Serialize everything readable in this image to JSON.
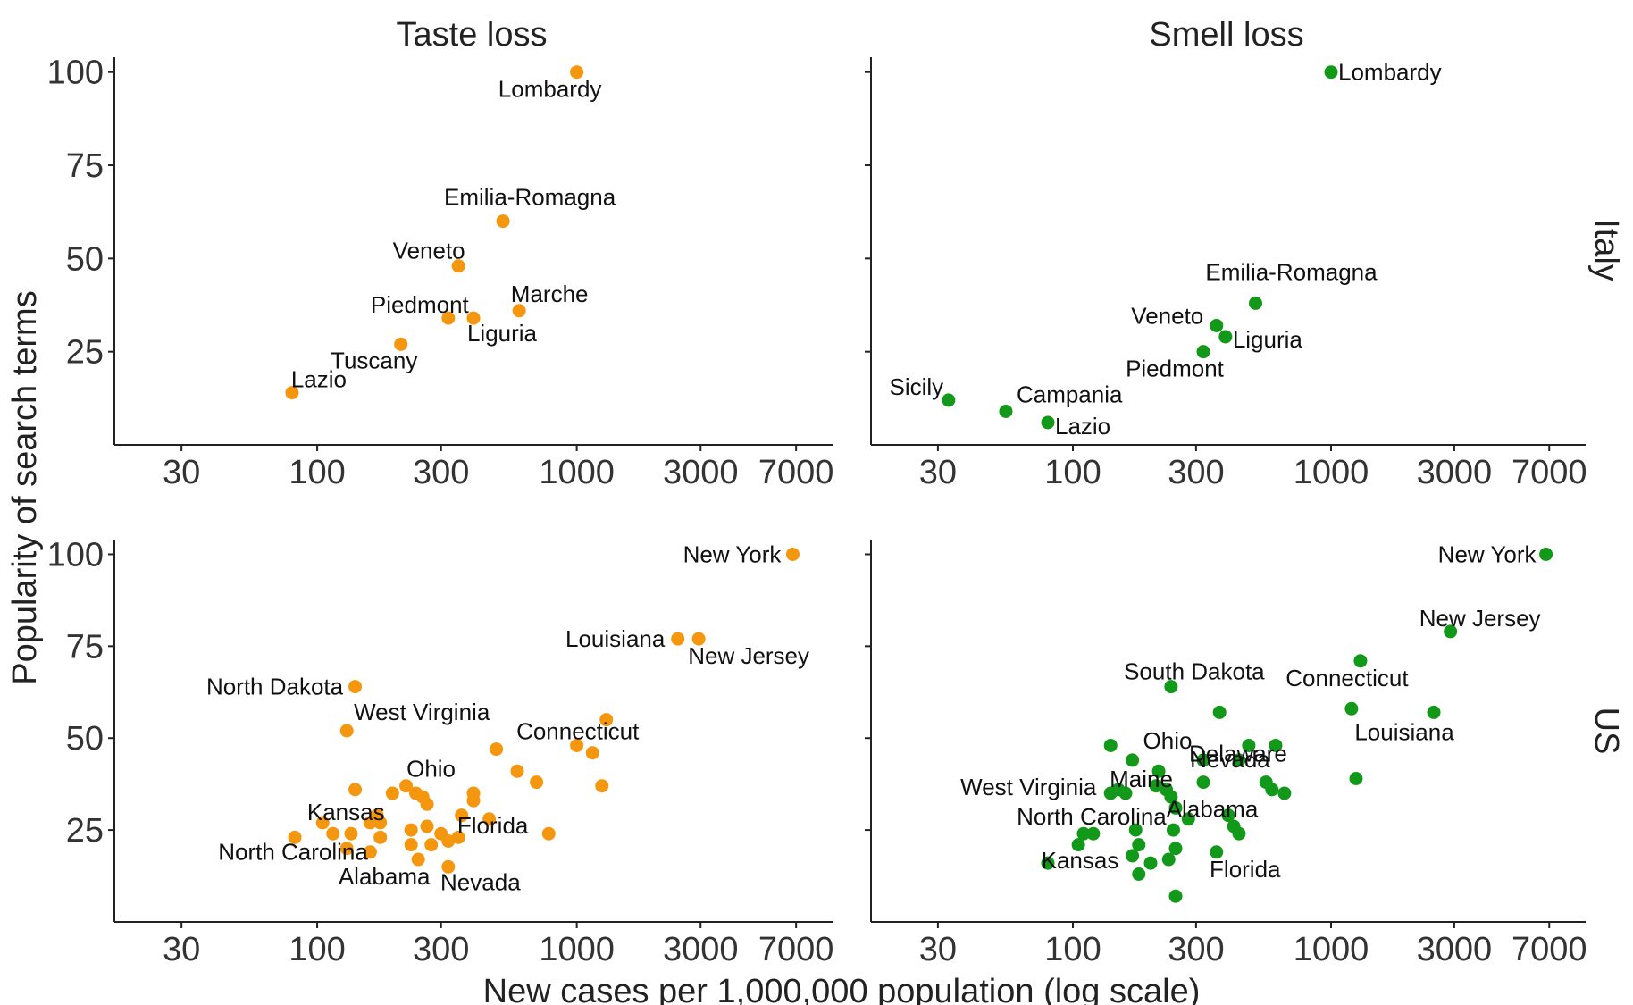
{
  "chart_data": {
    "type": "scatter",
    "facet_cols": [
      "Taste loss",
      "Smell loss"
    ],
    "facet_rows": [
      "Italy",
      "US"
    ],
    "xlabel": "New cases per 1,000,000 population (log scale)",
    "ylabel": "Popularity of search terms",
    "x_scale": "log",
    "x_ticks": [
      30,
      100,
      300,
      1000,
      3000,
      7000
    ],
    "x_tick_labels": [
      "30",
      "100",
      "300",
      "1000",
      "3000",
      "7000"
    ],
    "y_ticks": [
      25,
      50,
      75,
      100
    ],
    "y_tick_labels": [
      "25",
      "50",
      "75",
      "100"
    ],
    "xlim": [
      20,
      8000
    ],
    "ylim": [
      0,
      104
    ],
    "grid": false,
    "colors": {
      "taste": "#f5960f",
      "smell": "#12991a"
    },
    "panels": [
      {
        "col": "Taste loss",
        "row": "Italy",
        "color": "#f5960f",
        "points": [
          {
            "x": 1000,
            "y": 100,
            "label": "Lombardy"
          },
          {
            "x": 520,
            "y": 60,
            "label": "Emilia-Romagna"
          },
          {
            "x": 350,
            "y": 48,
            "label": "Veneto"
          },
          {
            "x": 320,
            "y": 34,
            "label": "Piedmont"
          },
          {
            "x": 400,
            "y": 34,
            "label": "Liguria"
          },
          {
            "x": 600,
            "y": 36,
            "label": "Marche"
          },
          {
            "x": 210,
            "y": 27,
            "label": "Tuscany"
          },
          {
            "x": 80,
            "y": 14,
            "label": "Lazio"
          }
        ]
      },
      {
        "col": "Smell loss",
        "row": "Italy",
        "color": "#12991a",
        "points": [
          {
            "x": 1000,
            "y": 100,
            "label": "Lombardy"
          },
          {
            "x": 510,
            "y": 38,
            "label": "Emilia-Romagna"
          },
          {
            "x": 360,
            "y": 32,
            "label": "Veneto"
          },
          {
            "x": 390,
            "y": 29,
            "label": "Liguria"
          },
          {
            "x": 320,
            "y": 25,
            "label": "Piedmont"
          },
          {
            "x": 33,
            "y": 12,
            "label": "Sicily"
          },
          {
            "x": 55,
            "y": 9,
            "label": "Campania"
          },
          {
            "x": 80,
            "y": 6,
            "label": "Lazio"
          }
        ]
      },
      {
        "col": "Taste loss",
        "row": "US",
        "color": "#f5960f",
        "points": [
          {
            "x": 6800,
            "y": 100,
            "label": "New York"
          },
          {
            "x": 2450,
            "y": 77,
            "label": "Louisiana"
          },
          {
            "x": 2950,
            "y": 77,
            "label": "New Jersey"
          },
          {
            "x": 140,
            "y": 64,
            "label": "North Dakota"
          },
          {
            "x": 130,
            "y": 52,
            "label": "West Virginia"
          },
          {
            "x": 1300,
            "y": 55,
            "label": "Connecticut"
          },
          {
            "x": 220,
            "y": 37,
            "label": "Ohio"
          },
          {
            "x": 105,
            "y": 27,
            "label": "Kansas"
          },
          {
            "x": 82,
            "y": 23,
            "label": "North Carolina"
          },
          {
            "x": 460,
            "y": 28,
            "label": "Florida"
          },
          {
            "x": 245,
            "y": 17,
            "label": "Alabama"
          },
          {
            "x": 320,
            "y": 15,
            "label": "Nevada"
          },
          {
            "x": 1000,
            "y": 48
          },
          {
            "x": 1150,
            "y": 46
          },
          {
            "x": 1250,
            "y": 37
          },
          {
            "x": 490,
            "y": 47
          },
          {
            "x": 590,
            "y": 41
          },
          {
            "x": 700,
            "y": 38
          },
          {
            "x": 780,
            "y": 24
          },
          {
            "x": 400,
            "y": 35
          },
          {
            "x": 400,
            "y": 33
          },
          {
            "x": 360,
            "y": 29
          },
          {
            "x": 350,
            "y": 23
          },
          {
            "x": 320,
            "y": 22
          },
          {
            "x": 300,
            "y": 24
          },
          {
            "x": 275,
            "y": 21
          },
          {
            "x": 265,
            "y": 26
          },
          {
            "x": 240,
            "y": 35
          },
          {
            "x": 255,
            "y": 34
          },
          {
            "x": 265,
            "y": 32
          },
          {
            "x": 230,
            "y": 25
          },
          {
            "x": 230,
            "y": 21
          },
          {
            "x": 195,
            "y": 35
          },
          {
            "x": 170,
            "y": 29
          },
          {
            "x": 175,
            "y": 27
          },
          {
            "x": 160,
            "y": 27
          },
          {
            "x": 175,
            "y": 23
          },
          {
            "x": 160,
            "y": 19
          },
          {
            "x": 140,
            "y": 36
          },
          {
            "x": 135,
            "y": 24
          },
          {
            "x": 130,
            "y": 20
          },
          {
            "x": 115,
            "y": 24
          }
        ]
      },
      {
        "col": "Smell loss",
        "row": "US",
        "color": "#12991a",
        "points": [
          {
            "x": 6800,
            "y": 100,
            "label": "New York"
          },
          {
            "x": 2900,
            "y": 79,
            "label": "New Jersey"
          },
          {
            "x": 1300,
            "y": 71,
            "label": "Connecticut"
          },
          {
            "x": 240,
            "y": 64,
            "label": "South Dakota"
          },
          {
            "x": 2500,
            "y": 57,
            "label": "Louisiana"
          },
          {
            "x": 480,
            "y": 48,
            "label": "Delaware"
          },
          {
            "x": 320,
            "y": 44,
            "label": "Ohio"
          },
          {
            "x": 440,
            "y": 44,
            "label": "Nevada"
          },
          {
            "x": 140,
            "y": 35,
            "label": "West Virginia"
          },
          {
            "x": 230,
            "y": 36,
            "label": "Maine"
          },
          {
            "x": 110,
            "y": 24,
            "label": "North Carolina"
          },
          {
            "x": 400,
            "y": 29,
            "label": "Alabama"
          },
          {
            "x": 80,
            "y": 16,
            "label": "Kansas"
          },
          {
            "x": 360,
            "y": 19,
            "label": "Florida"
          },
          {
            "x": 1200,
            "y": 58
          },
          {
            "x": 1250,
            "y": 39
          },
          {
            "x": 370,
            "y": 57
          },
          {
            "x": 610,
            "y": 48
          },
          {
            "x": 560,
            "y": 38
          },
          {
            "x": 590,
            "y": 36
          },
          {
            "x": 660,
            "y": 35
          },
          {
            "x": 140,
            "y": 48
          },
          {
            "x": 170,
            "y": 44
          },
          {
            "x": 215,
            "y": 41
          },
          {
            "x": 240,
            "y": 34
          },
          {
            "x": 250,
            "y": 31
          },
          {
            "x": 280,
            "y": 28
          },
          {
            "x": 320,
            "y": 38
          },
          {
            "x": 420,
            "y": 26
          },
          {
            "x": 440,
            "y": 24
          },
          {
            "x": 150,
            "y": 36
          },
          {
            "x": 160,
            "y": 35
          },
          {
            "x": 210,
            "y": 37
          },
          {
            "x": 245,
            "y": 25
          },
          {
            "x": 235,
            "y": 17
          },
          {
            "x": 175,
            "y": 25
          },
          {
            "x": 170,
            "y": 18
          },
          {
            "x": 200,
            "y": 16
          },
          {
            "x": 180,
            "y": 21
          },
          {
            "x": 250,
            "y": 20
          },
          {
            "x": 120,
            "y": 24
          },
          {
            "x": 105,
            "y": 21
          },
          {
            "x": 180,
            "y": 13
          },
          {
            "x": 250,
            "y": 7
          }
        ]
      }
    ]
  }
}
